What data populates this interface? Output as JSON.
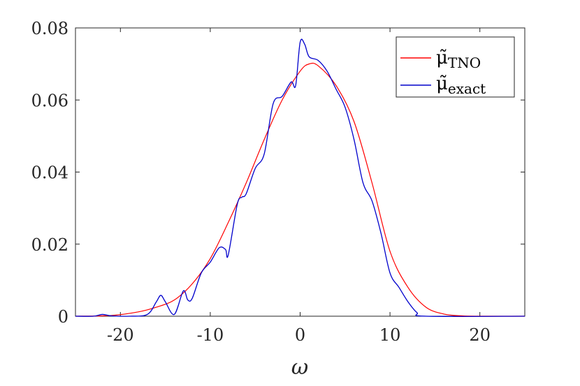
{
  "chart_data": {
    "type": "line",
    "title": "",
    "xlabel": "ω",
    "ylabel": "",
    "xlim": [
      -25,
      25
    ],
    "ylim": [
      0,
      0.08
    ],
    "grid": false,
    "legend_placement": "top-right",
    "x_ticks": [
      -20,
      -10,
      0,
      10,
      20
    ],
    "x_tick_labels": [
      "-20",
      "-10",
      "0",
      "10",
      "20"
    ],
    "y_ticks": [
      0,
      0.02,
      0.04,
      0.06,
      0.08
    ],
    "y_tick_labels": [
      "0",
      "0.02",
      "0.04",
      "0.06",
      "0.08"
    ],
    "series": [
      {
        "name": "μ̃TNO",
        "legend_main": "μ̃",
        "legend_sub": "TNO",
        "color": "#ff0000",
        "points": [
          [
            -25,
            0
          ],
          [
            -21,
            0.0002
          ],
          [
            -18,
            0.0012
          ],
          [
            -16,
            0.0025
          ],
          [
            -14,
            0.0045
          ],
          [
            -12,
            0.009
          ],
          [
            -10,
            0.016
          ],
          [
            -8,
            0.026
          ],
          [
            -6,
            0.037
          ],
          [
            -4,
            0.049
          ],
          [
            -2,
            0.06
          ],
          [
            0,
            0.068
          ],
          [
            1,
            0.07
          ],
          [
            2,
            0.0695
          ],
          [
            4,
            0.064
          ],
          [
            6,
            0.054
          ],
          [
            8,
            0.037
          ],
          [
            10,
            0.018
          ],
          [
            12,
            0.008
          ],
          [
            14,
            0.0025
          ],
          [
            16,
            0.0006
          ],
          [
            18,
            0.0001
          ],
          [
            20,
            0
          ],
          [
            25,
            0
          ]
        ]
      },
      {
        "name": "μ̃exact",
        "legend_main": "μ̃",
        "legend_sub": "exact",
        "color": "#0000cc",
        "points": [
          [
            -25,
            0
          ],
          [
            -23,
            0
          ],
          [
            -22,
            0.0005
          ],
          [
            -21,
            0.0001
          ],
          [
            -19,
            0
          ],
          [
            -17,
            0.0005
          ],
          [
            -16,
            0.004
          ],
          [
            -15.5,
            0.0058
          ],
          [
            -15,
            0.004
          ],
          [
            -14,
            0.0005
          ],
          [
            -13,
            0.007
          ],
          [
            -12.5,
            0.0045
          ],
          [
            -12,
            0.005
          ],
          [
            -11,
            0.012
          ],
          [
            -10,
            0.015
          ],
          [
            -9,
            0.019
          ],
          [
            -8.3,
            0.0185
          ],
          [
            -8,
            0.017
          ],
          [
            -7,
            0.031
          ],
          [
            -6.5,
            0.033
          ],
          [
            -6,
            0.034
          ],
          [
            -5,
            0.041
          ],
          [
            -4,
            0.045
          ],
          [
            -3,
            0.059
          ],
          [
            -2,
            0.061
          ],
          [
            -1,
            0.065
          ],
          [
            -0.5,
            0.064
          ],
          [
            0,
            0.076
          ],
          [
            0.5,
            0.0755
          ],
          [
            1,
            0.072
          ],
          [
            2,
            0.071
          ],
          [
            3,
            0.068
          ],
          [
            4,
            0.063
          ],
          [
            5,
            0.058
          ],
          [
            6,
            0.049
          ],
          [
            7,
            0.037
          ],
          [
            8,
            0.032
          ],
          [
            9,
            0.023
          ],
          [
            10,
            0.012
          ],
          [
            11,
            0.008
          ],
          [
            12,
            0.004
          ],
          [
            13,
            0.001
          ],
          [
            14,
            0
          ],
          [
            25,
            0
          ]
        ]
      }
    ]
  }
}
